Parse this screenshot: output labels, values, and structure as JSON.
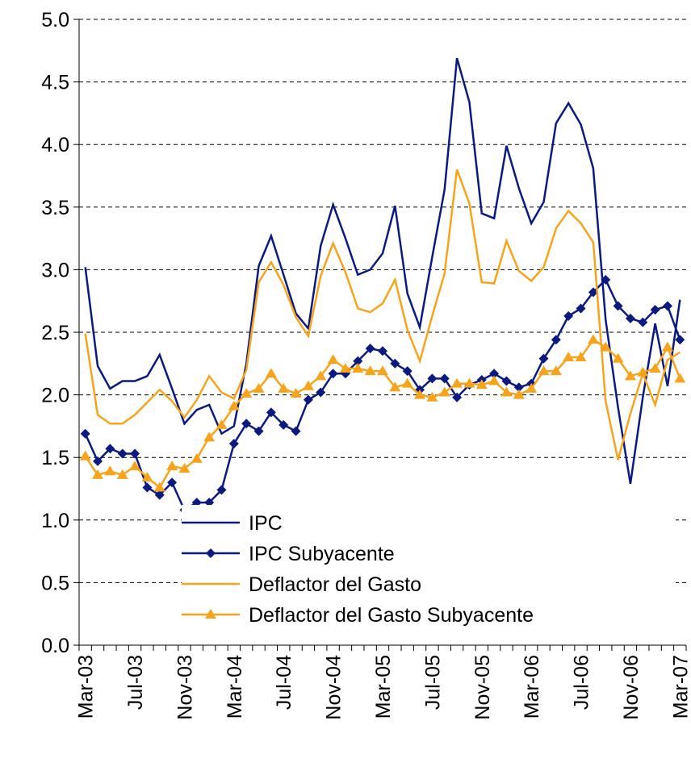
{
  "chart_data": {
    "type": "line",
    "categories": [
      "Mar-03",
      null,
      null,
      null,
      "Jul-03",
      null,
      null,
      null,
      "Nov-03",
      null,
      null,
      null,
      "Mar-04",
      null,
      null,
      null,
      "Jul-04",
      null,
      null,
      null,
      "Nov-04",
      null,
      null,
      null,
      "Mar-05",
      null,
      null,
      null,
      "Jul-05",
      null,
      null,
      null,
      "Nov-05",
      null,
      null,
      null,
      "Mar-06",
      null,
      null,
      null,
      "Jul-06",
      null,
      null,
      null,
      "Nov-06",
      null,
      null,
      null,
      "Mar-07"
    ],
    "series": [
      {
        "name": "IPC",
        "color": "#0a1a80",
        "marker": "none",
        "values": [
          3.02,
          2.23,
          2.05,
          2.11,
          2.11,
          2.15,
          2.32,
          2.05,
          1.77,
          1.88,
          1.92,
          1.69,
          1.75,
          2.25,
          3.03,
          3.27,
          2.96,
          2.65,
          2.53,
          3.19,
          3.52,
          3.25,
          2.96,
          3.0,
          3.13,
          3.51,
          2.81,
          2.54,
          3.1,
          3.64,
          4.69,
          4.34,
          3.45,
          3.41,
          3.99,
          3.65,
          3.37,
          3.54,
          4.17,
          4.33,
          4.16,
          3.81,
          2.6,
          1.9,
          1.29,
          1.98,
          2.57,
          2.07,
          2.76
        ]
      },
      {
        "name": "IPC Subyacente",
        "color": "#0a1a80",
        "marker": "diamond",
        "values": [
          1.69,
          1.47,
          1.57,
          1.53,
          1.53,
          1.26,
          1.2,
          1.3,
          1.08,
          1.14,
          1.14,
          1.24,
          1.61,
          1.77,
          1.71,
          1.86,
          1.76,
          1.71,
          1.96,
          2.02,
          2.17,
          2.17,
          2.27,
          2.37,
          2.35,
          2.25,
          2.19,
          2.04,
          2.13,
          2.13,
          1.98,
          2.08,
          2.12,
          2.17,
          2.11,
          2.06,
          2.09,
          2.29,
          2.44,
          2.63,
          2.69,
          2.82,
          2.92,
          2.71,
          2.61,
          2.58,
          2.68,
          2.71,
          2.44
        ]
      },
      {
        "name": "Deflactor del Gasto",
        "color": "#f7a41c",
        "marker": "none",
        "values": [
          2.49,
          1.84,
          1.77,
          1.77,
          1.84,
          1.94,
          2.04,
          1.95,
          1.82,
          1.96,
          2.15,
          2.02,
          1.97,
          2.2,
          2.9,
          3.06,
          2.88,
          2.62,
          2.47,
          2.95,
          3.21,
          2.98,
          2.69,
          2.66,
          2.73,
          2.92,
          2.52,
          2.27,
          2.63,
          2.97,
          3.8,
          3.53,
          2.9,
          2.89,
          3.23,
          2.99,
          2.91,
          3.02,
          3.33,
          3.47,
          3.37,
          3.22,
          1.95,
          1.48,
          1.85,
          2.17,
          1.92,
          2.28,
          2.34
        ]
      },
      {
        "name": "Deflactor del Gasto Subyacente",
        "color": "#f7a41c",
        "marker": "triangle",
        "values": [
          1.51,
          1.36,
          1.39,
          1.36,
          1.43,
          1.34,
          1.26,
          1.43,
          1.41,
          1.49,
          1.66,
          1.76,
          1.91,
          2.01,
          2.05,
          2.17,
          2.05,
          2.01,
          2.07,
          2.15,
          2.28,
          2.21,
          2.21,
          2.19,
          2.19,
          2.06,
          2.09,
          2.0,
          1.98,
          2.02,
          2.09,
          2.09,
          2.08,
          2.11,
          2.02,
          2.0,
          2.05,
          2.19,
          2.19,
          2.3,
          2.3,
          2.44,
          2.38,
          2.29,
          2.15,
          2.18,
          2.21,
          2.38,
          2.13
        ]
      }
    ],
    "ylim": [
      0,
      5
    ],
    "yticks": [
      {
        "value": 0,
        "label": "0.0"
      },
      0.5,
      {
        "value": 1,
        "label": "1.0"
      },
      1.5,
      {
        "value": 2,
        "label": "2.0"
      },
      2.5,
      {
        "value": 3,
        "label": "3.0"
      },
      3.5,
      {
        "value": 4,
        "label": "4.0"
      },
      4.5,
      {
        "value": 5,
        "label": "5.0"
      }
    ],
    "grid": true,
    "legend": "bottom-left"
  }
}
